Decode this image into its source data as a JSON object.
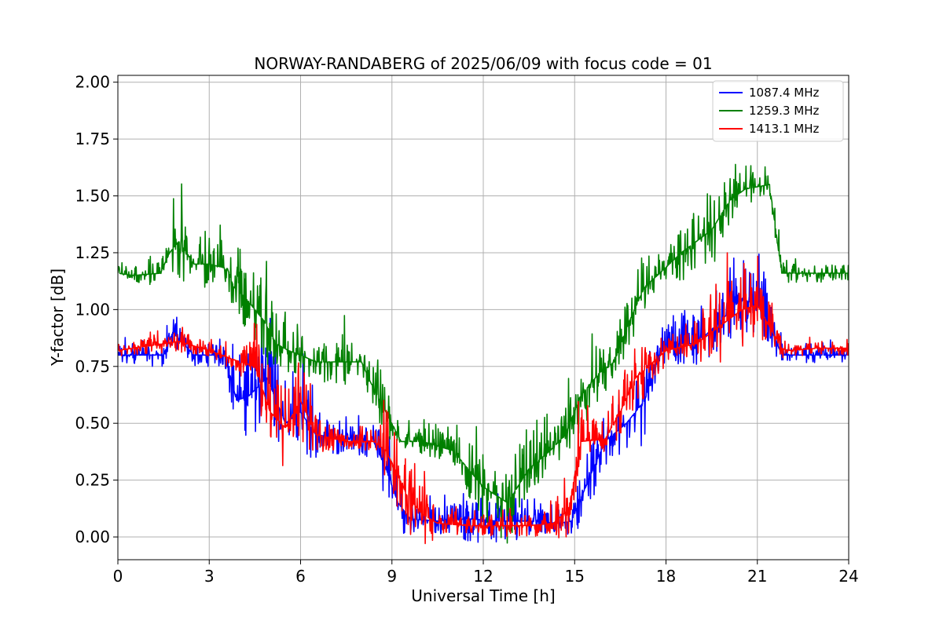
{
  "chart_data": {
    "type": "line",
    "title": "NORWAY-RANDABERG of 2025/06/09 with focus code = 01",
    "xlabel": "Universal Time [h]",
    "ylabel": "Y-factor [dB]",
    "xlim": [
      0,
      24
    ],
    "ylim": [
      -0.1,
      2.03
    ],
    "xticks": [
      0,
      3,
      6,
      9,
      12,
      15,
      18,
      21,
      24
    ],
    "xtick_labels": [
      "0",
      "3",
      "6",
      "9",
      "12",
      "15",
      "18",
      "21",
      "24"
    ],
    "yticks": [
      0.0,
      0.25,
      0.5,
      0.75,
      1.0,
      1.25,
      1.5,
      1.75,
      2.0
    ],
    "ytick_labels": [
      "0.00",
      "0.25",
      "0.50",
      "0.75",
      "1.00",
      "1.25",
      "1.50",
      "1.75",
      "2.00"
    ],
    "grid": true,
    "legend_position": "top-right",
    "series": [
      {
        "name": "1087.4 MHz",
        "color": "#0000ff",
        "x": [
          0,
          1.5,
          1.8,
          2.5,
          3.5,
          3.9,
          4.3,
          4.9,
          5.5,
          6.0,
          6.5,
          7.5,
          8.4,
          8.8,
          9.2,
          9.6,
          10.5,
          11.5,
          12.5,
          13.5,
          14.5,
          14.9,
          15.3,
          16.0,
          16.7,
          17.3,
          17.8,
          18.3,
          19.0,
          19.8,
          20.5,
          21.2,
          21.8,
          22.5,
          24
        ],
        "y": [
          0.8,
          0.8,
          0.9,
          0.8,
          0.8,
          0.6,
          0.62,
          0.7,
          0.5,
          0.55,
          0.45,
          0.43,
          0.42,
          0.3,
          0.15,
          0.08,
          0.07,
          0.08,
          0.07,
          0.07,
          0.06,
          0.07,
          0.2,
          0.42,
          0.5,
          0.6,
          0.81,
          0.85,
          0.85,
          0.95,
          1.05,
          1.0,
          0.8,
          0.8,
          0.8
        ],
        "noise": [
          0.05,
          0.05,
          0.06,
          0.05,
          0.05,
          0.14,
          0.18,
          0.2,
          0.2,
          0.22,
          0.1,
          0.06,
          0.08,
          0.15,
          0.12,
          0.08,
          0.06,
          0.1,
          0.12,
          0.06,
          0.05,
          0.06,
          0.14,
          0.12,
          0.14,
          0.2,
          0.06,
          0.12,
          0.1,
          0.12,
          0.14,
          0.14,
          0.05,
          0.04,
          0.04
        ]
      },
      {
        "name": "1259.3 MHz",
        "color": "#008000",
        "x": [
          0,
          0.5,
          1.4,
          1.7,
          2.0,
          2.5,
          3.0,
          3.6,
          3.8,
          4.2,
          4.8,
          5.2,
          5.6,
          6.0,
          6.5,
          7.2,
          8.0,
          8.3,
          8.8,
          9.3,
          10.0,
          11.0,
          12.0,
          12.8,
          13.5,
          14.2,
          14.7,
          15.2,
          15.8,
          16.3,
          16.8,
          17.3,
          17.8,
          18.5,
          19.0,
          19.5,
          20.1,
          20.6,
          21.4,
          21.8,
          22.2,
          23.0,
          24
        ],
        "y": [
          1.16,
          1.15,
          1.16,
          1.25,
          1.3,
          1.2,
          1.2,
          1.18,
          1.1,
          1.05,
          0.95,
          0.85,
          0.82,
          0.8,
          0.77,
          0.77,
          0.77,
          0.68,
          0.55,
          0.42,
          0.42,
          0.38,
          0.22,
          0.15,
          0.3,
          0.38,
          0.45,
          0.62,
          0.72,
          0.77,
          0.95,
          1.1,
          1.16,
          1.25,
          1.3,
          1.35,
          1.48,
          1.53,
          1.55,
          1.16,
          1.16,
          1.16,
          1.16
        ],
        "noise": [
          0.04,
          0.04,
          0.05,
          0.12,
          0.18,
          0.12,
          0.12,
          0.1,
          0.1,
          0.15,
          0.2,
          0.15,
          0.1,
          0.1,
          0.06,
          0.15,
          0.04,
          0.1,
          0.12,
          0.05,
          0.06,
          0.08,
          0.15,
          0.18,
          0.15,
          0.1,
          0.12,
          0.15,
          0.12,
          0.12,
          0.12,
          0.1,
          0.05,
          0.12,
          0.16,
          0.18,
          0.1,
          0.06,
          0.08,
          0.05,
          0.04,
          0.04,
          0.04
        ]
      },
      {
        "name": "1413.1 MHz",
        "color": "#ff0000",
        "x": [
          0,
          0.5,
          1.5,
          2.0,
          2.5,
          3.0,
          3.8,
          4.5,
          5.0,
          5.5,
          6.0,
          6.5,
          7.5,
          8.4,
          8.8,
          9.1,
          9.5,
          10.0,
          10.5,
          11.5,
          12.5,
          13.5,
          14.3,
          14.8,
          15.2,
          16.0,
          16.5,
          17.0,
          18.0,
          19.0,
          19.5,
          20.0,
          20.5,
          21.0,
          21.8,
          22.0,
          23.0,
          24
        ],
        "y": [
          0.82,
          0.83,
          0.85,
          0.86,
          0.84,
          0.82,
          0.78,
          0.75,
          0.55,
          0.48,
          0.6,
          0.45,
          0.42,
          0.42,
          0.38,
          0.3,
          0.18,
          0.1,
          0.06,
          0.05,
          0.05,
          0.05,
          0.06,
          0.12,
          0.42,
          0.43,
          0.55,
          0.7,
          0.82,
          0.85,
          0.9,
          0.95,
          1.0,
          1.02,
          0.83,
          0.82,
          0.83,
          0.83
        ],
        "noise": [
          0.03,
          0.03,
          0.04,
          0.05,
          0.04,
          0.03,
          0.05,
          0.12,
          0.22,
          0.18,
          0.2,
          0.08,
          0.03,
          0.05,
          0.14,
          0.16,
          0.16,
          0.14,
          0.08,
          0.04,
          0.05,
          0.05,
          0.06,
          0.14,
          0.16,
          0.05,
          0.12,
          0.15,
          0.06,
          0.08,
          0.14,
          0.18,
          0.18,
          0.16,
          0.05,
          0.03,
          0.03,
          0.03
        ]
      }
    ]
  }
}
